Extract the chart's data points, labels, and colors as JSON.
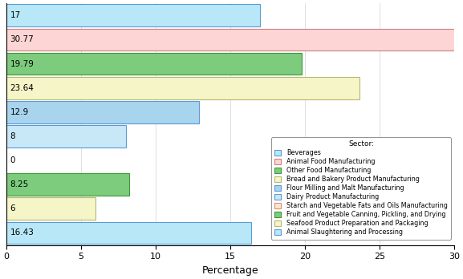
{
  "categories": [
    "Beverages",
    "Animal Food Manufacturing",
    "Other Food Manufacturing",
    "Bread and Bakery Product Manufacturing",
    "Flour Milling and Malt Manufacturing",
    "Dairy Product Manufacturing",
    "Starch and Vegetable Fats and Oils Manufacturing",
    "Fruit and Vegetable Canning, Pickling, and Drying",
    "Seafood Product Preparation and Packaging",
    "Animal Slaughtering and Processing"
  ],
  "values": [
    17,
    30.77,
    19.79,
    23.64,
    12.9,
    8,
    0,
    8.25,
    6,
    16.43
  ],
  "bar_colors": [
    "#b8e8f8",
    "#fdd5d5",
    "#7dcc7d",
    "#f5f5c8",
    "#a8d4ee",
    "#c8e8f8",
    "#fce4d6",
    "#7dcc7d",
    "#f5f5c8",
    "#b8e8f8"
  ],
  "bar_edge_colors": [
    "#5b9bd5",
    "#cd8080",
    "#3a9a3a",
    "#b8b870",
    "#5b9bd5",
    "#5b9bd5",
    "#d4956a",
    "#3a9a3a",
    "#b8b870",
    "#5b9bd5"
  ],
  "xlabel": "Percentage",
  "xlim": [
    0,
    30
  ],
  "xticks": [
    0,
    5,
    10,
    15,
    20,
    25,
    30
  ],
  "legend_title": "Sector:",
  "legend_labels": [
    "Beverages",
    "Animal Food Manufacturing",
    "Other Food Manufacturing",
    "Bread and Bakery Product Manufacturing",
    "Flour Milling and Malt Manufacturing",
    "Dairy Product Manufacturing",
    "Starch and Vegetable Fats and Oils Manufacturing",
    "Fruit and Vegetable Canning, Pickling, and Drying",
    "Seafood Product Preparation and Packaging",
    "Animal Slaughtering and Processing"
  ],
  "legend_colors": [
    "#b8e8f8",
    "#fdd5d5",
    "#7dcc7d",
    "#f5f5c8",
    "#a8d4ee",
    "#c8e8f8",
    "#fce4d6",
    "#7dcc7d",
    "#f5f5c8",
    "#b8e8f8"
  ],
  "legend_edge_colors": [
    "#5b9bd5",
    "#cd8080",
    "#3a9a3a",
    "#b8b870",
    "#5b9bd5",
    "#5b9bd5",
    "#d4956a",
    "#3a9a3a",
    "#b8b870",
    "#5b9bd5"
  ],
  "bar_height": 0.92,
  "label_fontsize": 7.5,
  "xlabel_fontsize": 9,
  "legend_fontsize": 5.8,
  "legend_title_fontsize": 6.5
}
